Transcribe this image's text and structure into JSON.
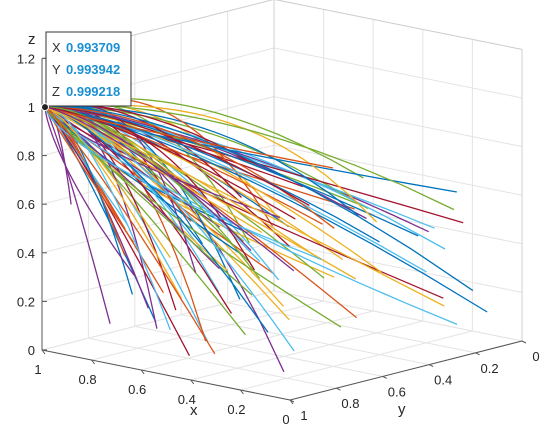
{
  "chart_data": {
    "type": "line",
    "dimensions": "3d",
    "xlabel": "x",
    "ylabel": "y",
    "zlabel": "z",
    "xlim": [
      0,
      1
    ],
    "ylim": [
      0,
      1
    ],
    "zlim": [
      0,
      1.2
    ],
    "xticks": [
      "1",
      "0.8",
      "0.6",
      "0.4",
      "0.2",
      "0"
    ],
    "yticks": [
      "1",
      "0.8",
      "0.6",
      "0.4",
      "0.2",
      "0"
    ],
    "zticks": [
      "0",
      "0.2",
      "0.4",
      "0.6",
      "0.8",
      "1",
      "1.2"
    ],
    "grid": true,
    "box": true,
    "description_of_series": "Many trajectories starting from scattered initial points across the x-y-z space, all converging to the equilibrium point near (1, 1, 1).",
    "converge_point": {
      "x": 0.993709,
      "y": 0.993942,
      "z": 0.999218
    },
    "datatip": {
      "x_label": "X",
      "x_value": "0.993709",
      "y_label": "Y",
      "y_value": "0.993942",
      "z_label": "Z",
      "z_value": "0.999218"
    },
    "colors": [
      "#0072BD",
      "#D95319",
      "#EDB120",
      "#7E2F8E",
      "#77AC30",
      "#4DBEEE",
      "#A2142F"
    ]
  }
}
